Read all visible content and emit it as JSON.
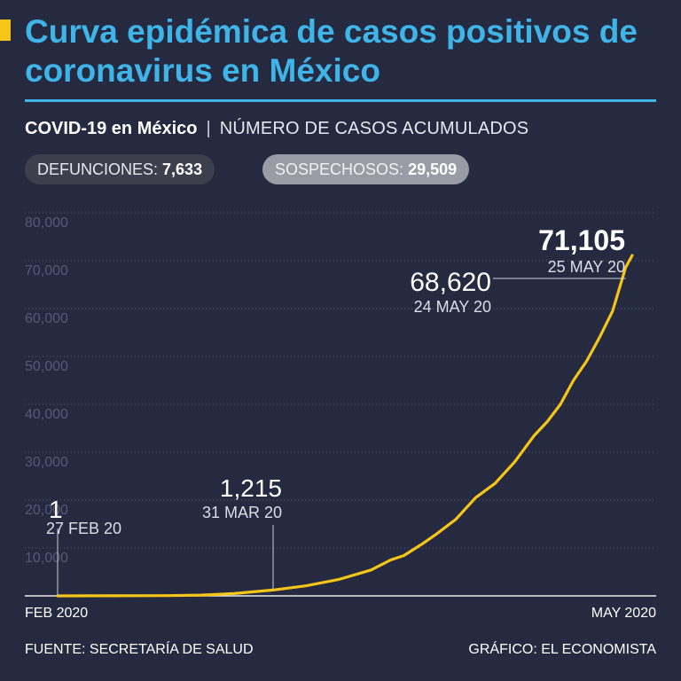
{
  "header": {
    "title": "Curva epidémica de casos positivos de coronavirus en México",
    "subtitle_bold": "COVID-19 en México",
    "subtitle_separator": "|",
    "subtitle_light": "NÚMERO DE CASOS ACUMULADOS",
    "accent_color": "#f5c518",
    "title_color": "#3fb4e8"
  },
  "badges": {
    "deaths_label": "DEFUNCIONES:",
    "deaths_value": "7,633",
    "suspects_label": "SOSPECHOSOS:",
    "suspects_value": "29,509"
  },
  "footer": {
    "source": "FUENTE: SECRETARÍA DE SALUD",
    "credit": "GRÁFICO: EL ECONOMISTA"
  },
  "chart_data": {
    "type": "line",
    "line_color": "#f5c518",
    "ylim": [
      0,
      80000
    ],
    "yticks": [
      10000,
      20000,
      30000,
      40000,
      50000,
      60000,
      70000,
      80000
    ],
    "ytick_labels": [
      "10,000",
      "20,000",
      "30,000",
      "40,000",
      "50,000",
      "60,000",
      "70,000",
      "80,000"
    ],
    "x_start_label": "FEB 2020",
    "x_end_label": "MAY 2020",
    "xlim": [
      "2020-02-27",
      "2020-05-25"
    ],
    "grid": true,
    "series": [
      {
        "x": [
          "2020-02-27",
          "2020-03-05",
          "2020-03-10",
          "2020-03-15",
          "2020-03-20",
          "2020-03-25",
          "2020-03-31",
          "2020-04-05",
          "2020-04-10",
          "2020-04-15",
          "2020-04-18",
          "2020-04-20",
          "2020-04-23",
          "2020-04-25",
          "2020-04-28",
          "2020-05-01",
          "2020-05-04",
          "2020-05-07",
          "2020-05-10",
          "2020-05-12",
          "2020-05-14",
          "2020-05-16",
          "2020-05-18",
          "2020-05-20",
          "2020-05-22",
          "2020-05-24",
          "2020-05-25"
        ],
        "y": [
          1,
          10,
          30,
          60,
          170,
          480,
          1215,
          2100,
          3400,
          5400,
          7500,
          8400,
          11000,
          12900,
          16000,
          20500,
          23500,
          28000,
          33500,
          36400,
          40000,
          45000,
          49000,
          54000,
          59500,
          68620,
          71105
        ]
      }
    ],
    "annotations": [
      {
        "value": "1",
        "date": "27 FEB 20"
      },
      {
        "value": "1,215",
        "date": "31 MAR 20"
      },
      {
        "value": "68,620",
        "date": "24 MAY 20"
      },
      {
        "value": "71,105",
        "date": "25 MAY 20"
      }
    ]
  }
}
